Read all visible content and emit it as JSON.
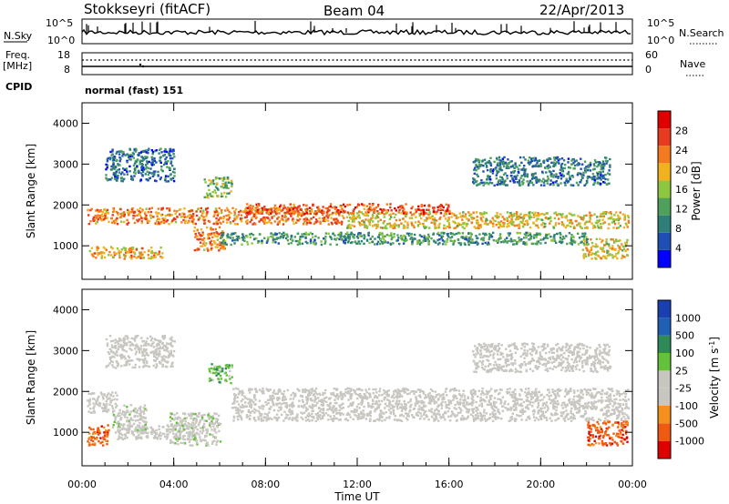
{
  "header": {
    "station": "Stokkseyri (fitACF)",
    "beam": "Beam 04",
    "date": "22/Apr/2013"
  },
  "nsky_panel": {
    "left_label": "N.Sky",
    "right_label": "N.Search",
    "left_ticks": [
      "10^5",
      "10^0"
    ],
    "right_ticks": [
      "10^5",
      "10^0"
    ]
  },
  "freq_panel": {
    "left_label_1": "Freq.",
    "left_label_2": "[MHz]",
    "right_label": "Nave",
    "left_ticks": [
      "18",
      "8"
    ],
    "right_ticks": [
      "60",
      "0"
    ]
  },
  "cpid_panel": {
    "label": "CPID",
    "text": "normal (fast) 151"
  },
  "colors": {
    "power_scale": [
      "#0000ff",
      "#1f4fb4",
      "#2e7f78",
      "#4fa05a",
      "#8dc63f",
      "#f2b21f",
      "#f37a1f",
      "#e83a1f",
      "#e00000"
    ],
    "velocity_scale": [
      "#e00000",
      "#f05a10",
      "#f5901f",
      "#c8c6c0",
      "#c8c6c0",
      "#63c23a",
      "#2e8b57",
      "#1f5fb4",
      "#1a3fb0"
    ],
    "ground_scatter": "#c8c6c0"
  },
  "chart_data": [
    {
      "type": "heatmap",
      "panel": "power",
      "ylabel": "Slant Range [km]",
      "ylim": [
        180,
        4500
      ],
      "y_ticks": [
        "1000",
        "2000",
        "3000",
        "4000"
      ],
      "x_ticks": [
        "00:00",
        "04:00",
        "08:00",
        "12:00",
        "16:00",
        "20:00",
        "00:00"
      ],
      "xlim_hours": [
        0,
        24
      ],
      "colorbar": {
        "label": "Power [dB]",
        "ticks": [
          "4",
          "8",
          "12",
          "16",
          "20",
          "24",
          "28"
        ],
        "range": [
          0,
          30
        ]
      },
      "regions": [
        {
          "t0": 0.2,
          "t1": 11.5,
          "r0": 1550,
          "r1": 1950,
          "value": 22
        },
        {
          "t0": 11.5,
          "t1": 23.8,
          "r0": 1450,
          "r1": 1850,
          "value": 18
        },
        {
          "t0": 7.0,
          "t1": 16.0,
          "r0": 1800,
          "r1": 2050,
          "value": 25
        },
        {
          "t0": 0.3,
          "t1": 3.5,
          "r0": 700,
          "r1": 1000,
          "value": 20
        },
        {
          "t0": 4.8,
          "t1": 6.2,
          "r0": 900,
          "r1": 1500,
          "value": 22
        },
        {
          "t0": 6.0,
          "t1": 22.0,
          "r0": 1050,
          "r1": 1350,
          "value": 10
        },
        {
          "t0": 1.0,
          "t1": 4.0,
          "r0": 2600,
          "r1": 3400,
          "value": 6
        },
        {
          "t0": 5.3,
          "t1": 6.5,
          "r0": 2200,
          "r1": 2700,
          "value": 14
        },
        {
          "t0": 17.0,
          "t1": 23.0,
          "r0": 2500,
          "r1": 3200,
          "value": 7
        },
        {
          "t0": 21.8,
          "t1": 23.8,
          "r0": 700,
          "r1": 1200,
          "value": 18
        }
      ]
    },
    {
      "type": "heatmap",
      "panel": "velocity",
      "ylabel": "Slant Range [km]",
      "ylim": [
        180,
        4500
      ],
      "y_ticks": [
        "1000",
        "2000",
        "3000",
        "4000"
      ],
      "x_ticks": [
        "00:00",
        "04:00",
        "08:00",
        "12:00",
        "16:00",
        "20:00",
        "00:00"
      ],
      "xlim_hours": [
        0,
        24
      ],
      "xlabel": "Time UT",
      "colorbar": {
        "label_main": "Velocity",
        "label_unit": "[m s",
        "label_exp": "-1",
        "label_close": "]",
        "ticks": [
          "1000",
          "500",
          "100",
          "25",
          "-25",
          "-100",
          "-500",
          "-1000"
        ]
      },
      "regions": [
        {
          "t0": 6.5,
          "t1": 23.8,
          "r0": 1300,
          "r1": 2100,
          "value": 0
        },
        {
          "t0": 0.2,
          "t1": 1.5,
          "r0": 1500,
          "r1": 2000,
          "value": 0
        },
        {
          "t0": 0.2,
          "t1": 1.2,
          "r0": 700,
          "r1": 1200,
          "value": -300
        },
        {
          "t0": 1.5,
          "t1": 5.0,
          "r0": 850,
          "r1": 1200,
          "value": 0
        },
        {
          "t0": 3.8,
          "t1": 6.0,
          "r0": 700,
          "r1": 1500,
          "value": 80
        },
        {
          "t0": 1.3,
          "t1": 2.8,
          "r0": 1000,
          "r1": 1700,
          "value": 60
        },
        {
          "t0": 5.5,
          "t1": 6.5,
          "r0": 2200,
          "r1": 2700,
          "value": 400
        },
        {
          "t0": 22.0,
          "t1": 23.8,
          "r0": 700,
          "r1": 1300,
          "value": -400
        },
        {
          "t0": 1.0,
          "t1": 4.0,
          "r0": 2600,
          "r1": 3400,
          "value": 0
        },
        {
          "t0": 17.0,
          "t1": 23.0,
          "r0": 2500,
          "r1": 3200,
          "value": 0
        }
      ]
    }
  ]
}
